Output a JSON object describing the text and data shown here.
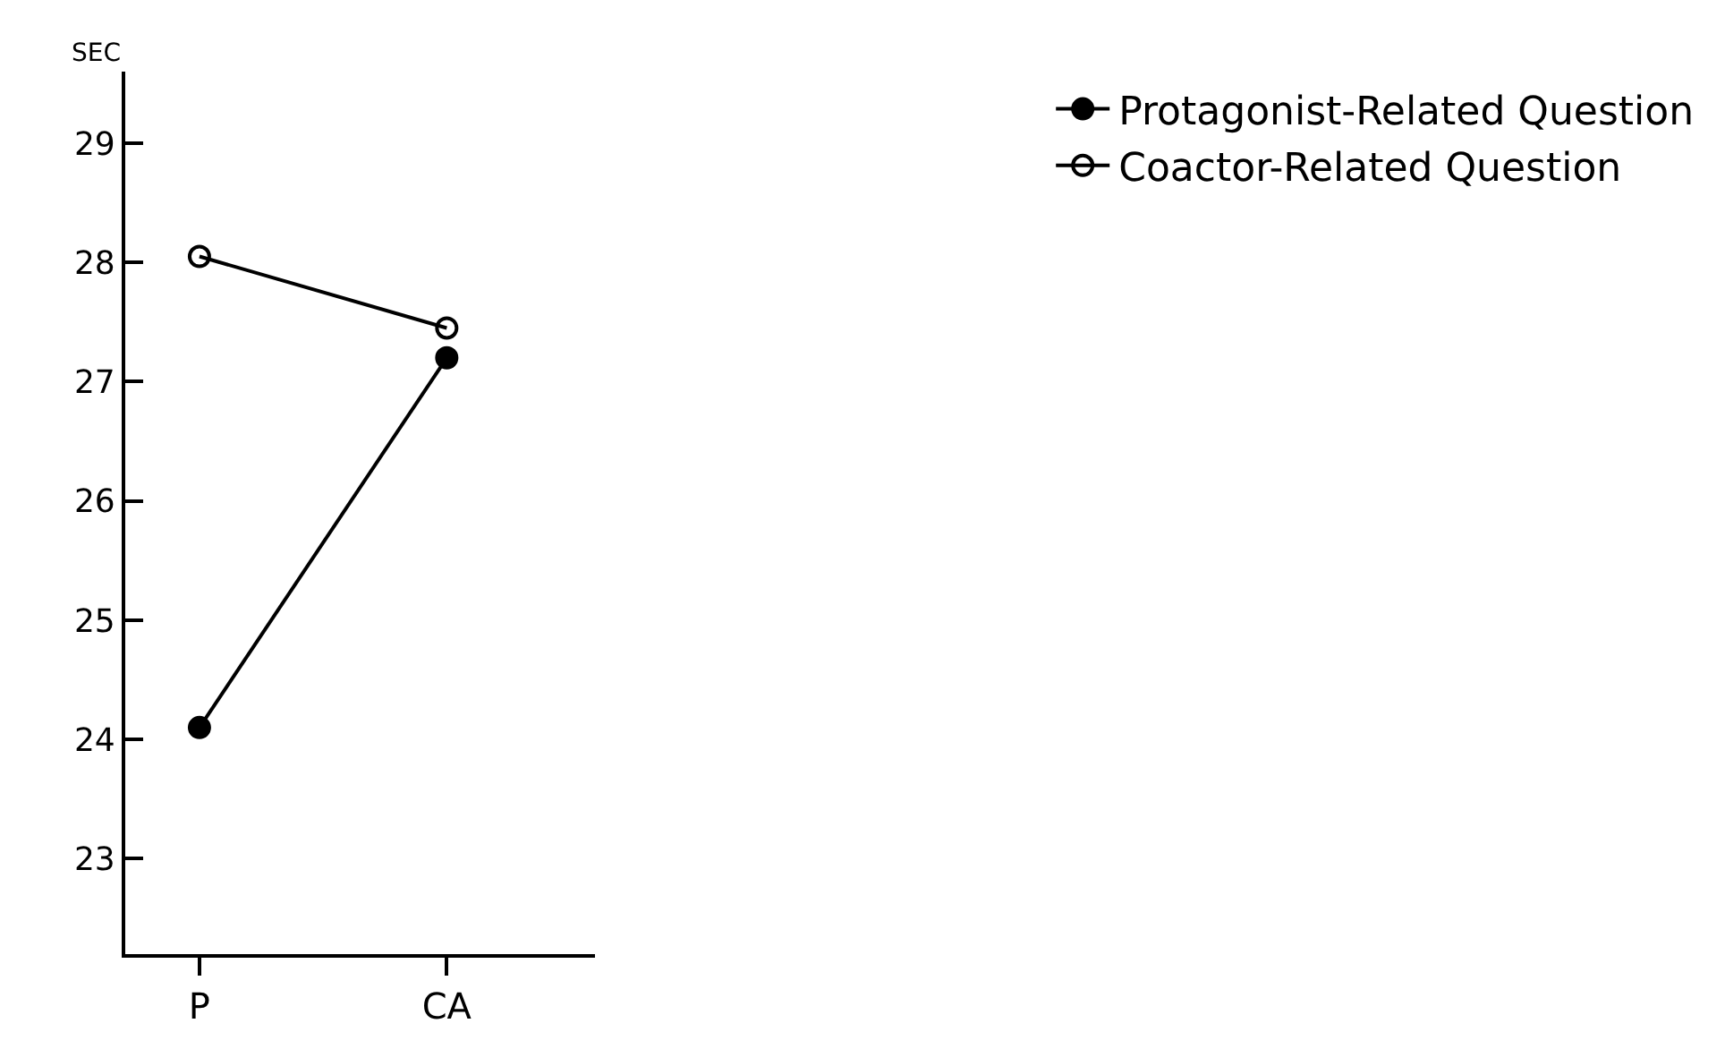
{
  "chart_data": {
    "type": "line",
    "ylabel": "SEC",
    "categories": [
      "P",
      "CA"
    ],
    "series": [
      {
        "name": "Protagonist-Related Question",
        "color": "#000000",
        "values": [
          24.1,
          27.2
        ],
        "marker": "circle"
      },
      {
        "name": "Coactor-Related Question",
        "color": "#000000",
        "values": [
          28.05,
          27.45
        ],
        "marker": "circle-open"
      }
    ],
    "ylim": [
      22.2,
      29.6
    ],
    "yticks": [
      23,
      24,
      25,
      26,
      27,
      28,
      29
    ],
    "legend": "right",
    "line_style": "solid"
  }
}
